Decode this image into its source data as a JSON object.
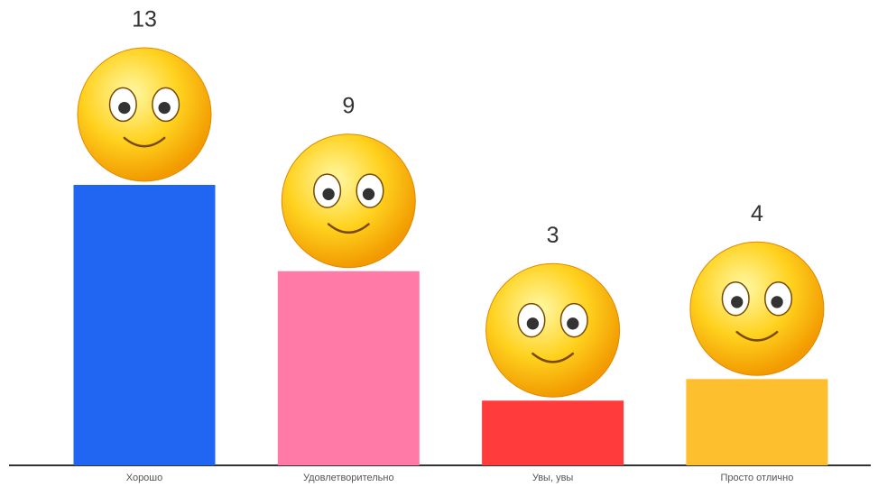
{
  "chart_data": {
    "type": "bar",
    "categories": [
      "Хорошо",
      "Удовлетворительно",
      "Увы, увы",
      "Просто отлично"
    ],
    "values": [
      13,
      9,
      3,
      4
    ],
    "colors": [
      "#2166f3",
      "#ff7aa6",
      "#ff3b3b",
      "#fdbf2d"
    ]
  }
}
